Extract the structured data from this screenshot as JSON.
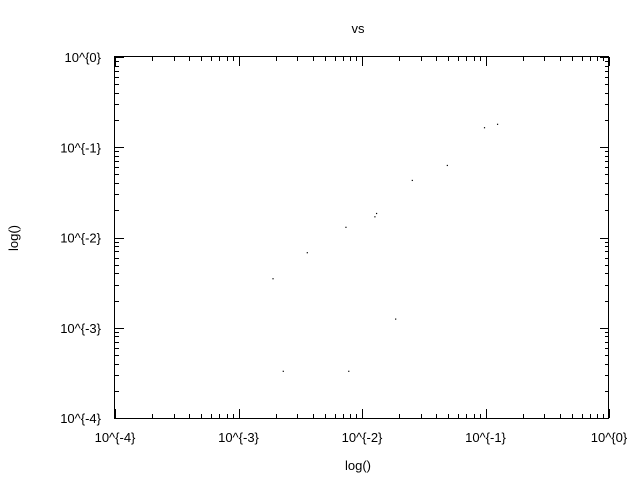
{
  "chart_data": {
    "type": "scatter",
    "title": "vs",
    "xlabel": "log()",
    "ylabel": "log()",
    "x_scale": "log",
    "y_scale": "log",
    "xlim": [
      0.0001,
      1
    ],
    "ylim": [
      0.0001,
      1
    ],
    "x_ticks": [
      {
        "value": 0.0001,
        "label": "10^{-4}"
      },
      {
        "value": 0.001,
        "label": "10^{-3}"
      },
      {
        "value": 0.01,
        "label": "10^{-2}"
      },
      {
        "value": 0.1,
        "label": "10^{-1}"
      },
      {
        "value": 1,
        "label": "10^{0}"
      }
    ],
    "y_ticks": [
      {
        "value": 0.0001,
        "label": "10^{-4}"
      },
      {
        "value": 0.001,
        "label": "10^{-3}"
      },
      {
        "value": 0.01,
        "label": "10^{-2}"
      },
      {
        "value": 0.1,
        "label": "10^{-1}"
      },
      {
        "value": 1,
        "label": "10^{0}"
      }
    ],
    "grid": false,
    "point_color": "#000000",
    "points": [
      {
        "x": 0.0019,
        "y": 0.0035
      },
      {
        "x": 0.0023,
        "y": 0.00033
      },
      {
        "x": 0.0036,
        "y": 0.0068
      },
      {
        "x": 0.0074,
        "y": 0.013
      },
      {
        "x": 0.0078,
        "y": 0.00033
      },
      {
        "x": 0.0127,
        "y": 0.017
      },
      {
        "x": 0.0131,
        "y": 0.0185
      },
      {
        "x": 0.0187,
        "y": 0.00125
      },
      {
        "x": 0.0255,
        "y": 0.043
      },
      {
        "x": 0.049,
        "y": 0.063
      },
      {
        "x": 0.098,
        "y": 0.165
      },
      {
        "x": 0.125,
        "y": 0.18
      }
    ]
  }
}
